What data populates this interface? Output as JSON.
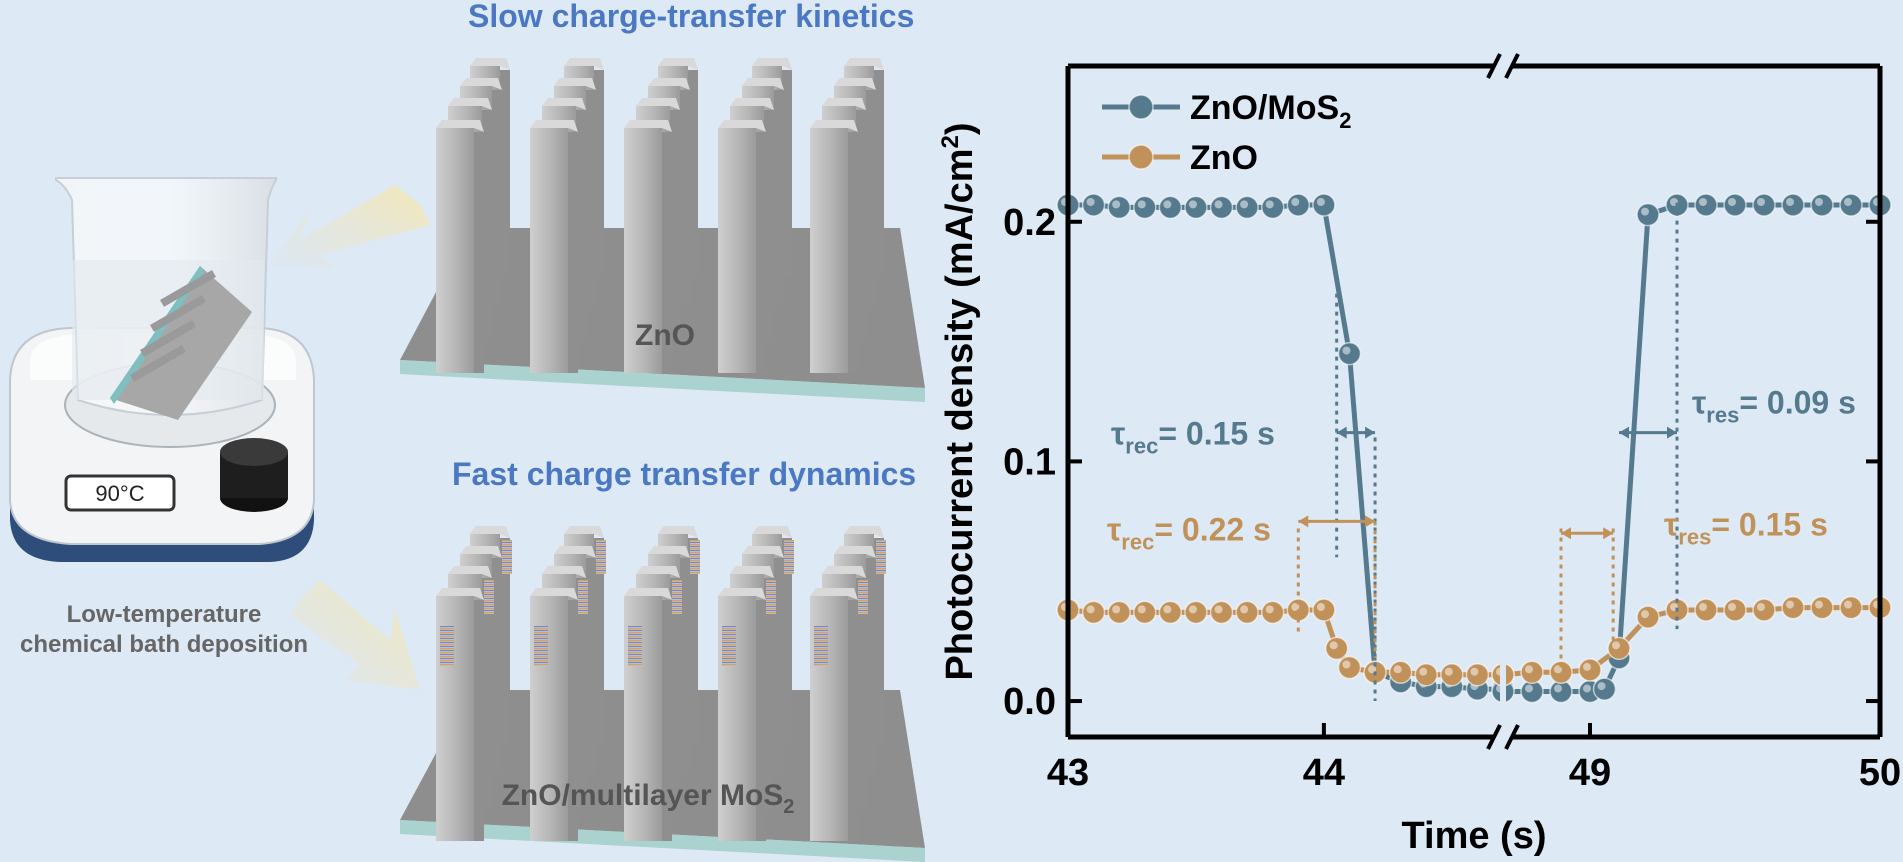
{
  "illustration": {
    "top_heading": "Slow charge-transfer kinetics",
    "bottom_heading": "Fast charge transfer dynamics",
    "top_substrate_label": "ZnO",
    "bottom_substrate_label": "ZnO/multilayer MoS",
    "bottom_substrate_sub": "2",
    "hotplate_display": "90°C",
    "caption_line1": "Low-temperature",
    "caption_line2": "chemical bath deposition"
  },
  "chart_data": {
    "type": "line",
    "xlabel": "Time (s)",
    "ylabel": "Photocurrent density (mA/cm",
    "ylabel_sup": "2",
    "ylabel_close": ")",
    "x_axis_broken": true,
    "x_segments": [
      [
        43,
        44.7
      ],
      [
        48.7,
        50
      ]
    ],
    "xticks": [
      43,
      44,
      49,
      50
    ],
    "ylim": [
      -0.015,
      0.265
    ],
    "yticks": [
      0.0,
      0.1,
      0.2
    ],
    "ytick_labels": [
      "0.0",
      "0.1",
      "0.2"
    ],
    "legend_position": "top-left",
    "series": [
      {
        "name": "ZnO/MoS",
        "name_sub": "2",
        "color": "#557a8e",
        "x": [
          43.0,
          43.1,
          43.2,
          43.3,
          43.4,
          43.5,
          43.6,
          43.7,
          43.8,
          43.9,
          44.0,
          44.1,
          44.2,
          44.3,
          44.4,
          44.5,
          44.6,
          44.7,
          48.7,
          48.8,
          48.9,
          49.0,
          49.05,
          49.1,
          49.2,
          49.3,
          49.4,
          49.5,
          49.6,
          49.7,
          49.8,
          49.9,
          50.0
        ],
        "y": [
          0.207,
          0.207,
          0.206,
          0.206,
          0.206,
          0.206,
          0.206,
          0.206,
          0.206,
          0.207,
          0.207,
          0.145,
          0.012,
          0.008,
          0.006,
          0.006,
          0.005,
          0.005,
          0.004,
          0.004,
          0.004,
          0.004,
          0.005,
          0.018,
          0.203,
          0.207,
          0.207,
          0.207,
          0.207,
          0.207,
          0.207,
          0.207,
          0.207
        ]
      },
      {
        "name": "ZnO",
        "color": "#c1915a",
        "x": [
          43.0,
          43.1,
          43.2,
          43.3,
          43.4,
          43.5,
          43.6,
          43.7,
          43.8,
          43.9,
          44.0,
          44.05,
          44.1,
          44.2,
          44.3,
          44.4,
          44.5,
          44.6,
          44.7,
          48.7,
          48.8,
          48.9,
          49.0,
          49.1,
          49.2,
          49.3,
          49.4,
          49.5,
          49.6,
          49.7,
          49.8,
          49.9,
          50.0
        ],
        "y": [
          0.038,
          0.037,
          0.037,
          0.037,
          0.037,
          0.037,
          0.037,
          0.037,
          0.037,
          0.038,
          0.038,
          0.022,
          0.014,
          0.012,
          0.012,
          0.011,
          0.011,
          0.011,
          0.011,
          0.011,
          0.012,
          0.012,
          0.013,
          0.022,
          0.035,
          0.038,
          0.038,
          0.038,
          0.038,
          0.039,
          0.039,
          0.039,
          0.039
        ]
      }
    ],
    "annotations": [
      {
        "sym": "τ",
        "sub": "rec",
        "text": "= 0.15 s",
        "series": "ZnO/MoS2"
      },
      {
        "sym": "τ",
        "sub": "res",
        "text": "= 0.09 s",
        "series": "ZnO/MoS2"
      },
      {
        "sym": "τ",
        "sub": "rec",
        "text": "= 0.22 s",
        "series": "ZnO"
      },
      {
        "sym": "τ",
        "sub": "res",
        "text": "= 0.15 s",
        "series": "ZnO"
      }
    ]
  }
}
